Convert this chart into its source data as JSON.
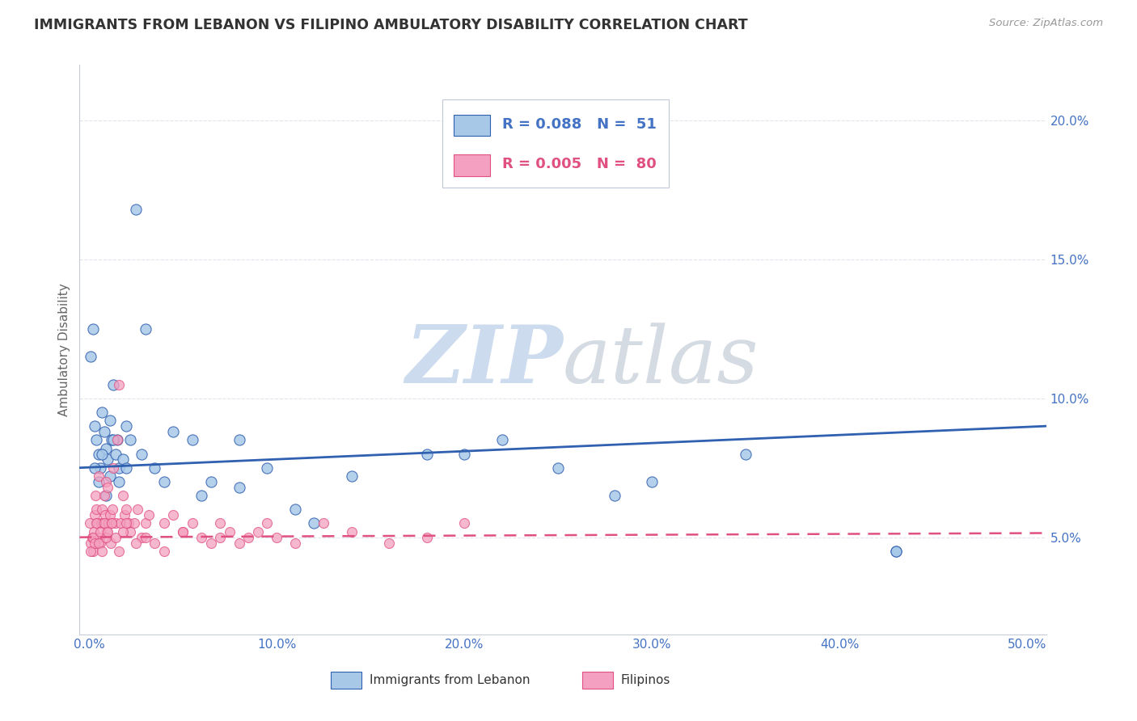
{
  "title": "IMMIGRANTS FROM LEBANON VS FILIPINO AMBULATORY DISABILITY CORRELATION CHART",
  "source": "Source: ZipAtlas.com",
  "xlabel_vals": [
    0.0,
    10.0,
    20.0,
    30.0,
    40.0,
    50.0
  ],
  "ylabel": "Ambulatory Disability",
  "ylabel_vals": [
    5.0,
    10.0,
    15.0,
    20.0
  ],
  "xlim": [
    -0.5,
    51.0
  ],
  "ylim": [
    1.5,
    22.0
  ],
  "legend_blue_R": "R = 0.088",
  "legend_blue_N": "N =  51",
  "legend_pink_R": "R = 0.005",
  "legend_pink_N": "N =  80",
  "legend1_label": "Immigrants from Lebanon",
  "legend2_label": "Filipinos",
  "blue_color": "#a8c8e8",
  "pink_color": "#f4a0c0",
  "trendline_blue": "#3060b0",
  "trendline_pink": "#e05080",
  "watermark": "ZIPatlas",
  "watermark_blue": "#c8d8ee",
  "watermark_gray": "#d0d8e0",
  "blue_scatter_x": [
    0.1,
    0.2,
    0.3,
    0.4,
    0.5,
    0.6,
    0.7,
    0.8,
    0.9,
    1.0,
    1.1,
    1.2,
    1.3,
    1.4,
    1.5,
    1.6,
    1.8,
    2.0,
    2.2,
    2.5,
    3.0,
    3.5,
    4.5,
    5.5,
    6.5,
    8.0,
    9.5,
    11.0,
    14.0,
    18.0,
    22.0,
    25.0,
    30.0,
    35.0,
    43.0,
    0.3,
    0.5,
    0.7,
    0.9,
    1.1,
    1.3,
    1.6,
    2.0,
    2.8,
    4.0,
    6.0,
    8.0,
    12.0,
    20.0,
    28.0,
    43.0
  ],
  "blue_scatter_y": [
    11.5,
    12.5,
    9.0,
    8.5,
    8.0,
    7.5,
    9.5,
    8.8,
    8.2,
    7.8,
    9.2,
    8.5,
    10.5,
    8.0,
    8.5,
    7.5,
    7.8,
    9.0,
    8.5,
    16.8,
    12.5,
    7.5,
    8.8,
    8.5,
    7.0,
    8.5,
    7.5,
    6.0,
    7.2,
    8.0,
    8.5,
    7.5,
    7.0,
    8.0,
    4.5,
    7.5,
    7.0,
    8.0,
    6.5,
    7.2,
    8.5,
    7.0,
    7.5,
    8.0,
    7.0,
    6.5,
    6.8,
    5.5,
    8.0,
    6.5,
    4.5
  ],
  "pink_scatter_x": [
    0.05,
    0.1,
    0.15,
    0.2,
    0.25,
    0.3,
    0.35,
    0.4,
    0.45,
    0.5,
    0.55,
    0.6,
    0.65,
    0.7,
    0.75,
    0.8,
    0.85,
    0.9,
    0.95,
    1.0,
    1.05,
    1.1,
    1.15,
    1.2,
    1.25,
    1.3,
    1.4,
    1.5,
    1.6,
    1.7,
    1.8,
    1.9,
    2.0,
    2.1,
    2.2,
    2.4,
    2.6,
    2.8,
    3.0,
    3.2,
    3.5,
    4.0,
    4.5,
    5.0,
    5.5,
    6.0,
    6.5,
    7.0,
    7.5,
    8.0,
    8.5,
    9.0,
    9.5,
    10.0,
    11.0,
    12.5,
    14.0,
    16.0,
    18.0,
    20.0,
    0.1,
    0.2,
    0.3,
    0.4,
    0.5,
    0.6,
    0.7,
    0.8,
    0.9,
    1.0,
    1.2,
    1.4,
    1.6,
    1.8,
    2.0,
    2.5,
    3.0,
    4.0,
    5.0,
    7.0
  ],
  "pink_scatter_y": [
    5.5,
    4.8,
    5.0,
    4.5,
    5.2,
    5.8,
    6.5,
    6.0,
    5.5,
    7.2,
    5.0,
    4.8,
    5.5,
    6.0,
    5.5,
    6.5,
    5.8,
    7.0,
    5.2,
    6.8,
    5.5,
    5.8,
    4.8,
    5.5,
    6.0,
    7.5,
    5.5,
    8.5,
    10.5,
    5.5,
    6.5,
    5.8,
    6.0,
    5.5,
    5.2,
    5.5,
    6.0,
    5.0,
    5.5,
    5.8,
    4.8,
    5.5,
    5.8,
    5.2,
    5.5,
    5.0,
    4.8,
    5.5,
    5.2,
    4.8,
    5.0,
    5.2,
    5.5,
    5.0,
    4.8,
    5.5,
    5.2,
    4.8,
    5.0,
    5.5,
    4.5,
    5.0,
    4.8,
    5.5,
    4.8,
    5.2,
    4.5,
    5.5,
    5.0,
    5.2,
    5.5,
    5.0,
    4.5,
    5.2,
    5.5,
    4.8,
    5.0,
    4.5,
    5.2,
    5.0
  ],
  "blue_trendline_start_y": 7.5,
  "blue_trendline_end_y": 9.0,
  "pink_trendline_y": 5.0,
  "grid_color": "#e0e4ec",
  "border_color": "#c8ccd8"
}
